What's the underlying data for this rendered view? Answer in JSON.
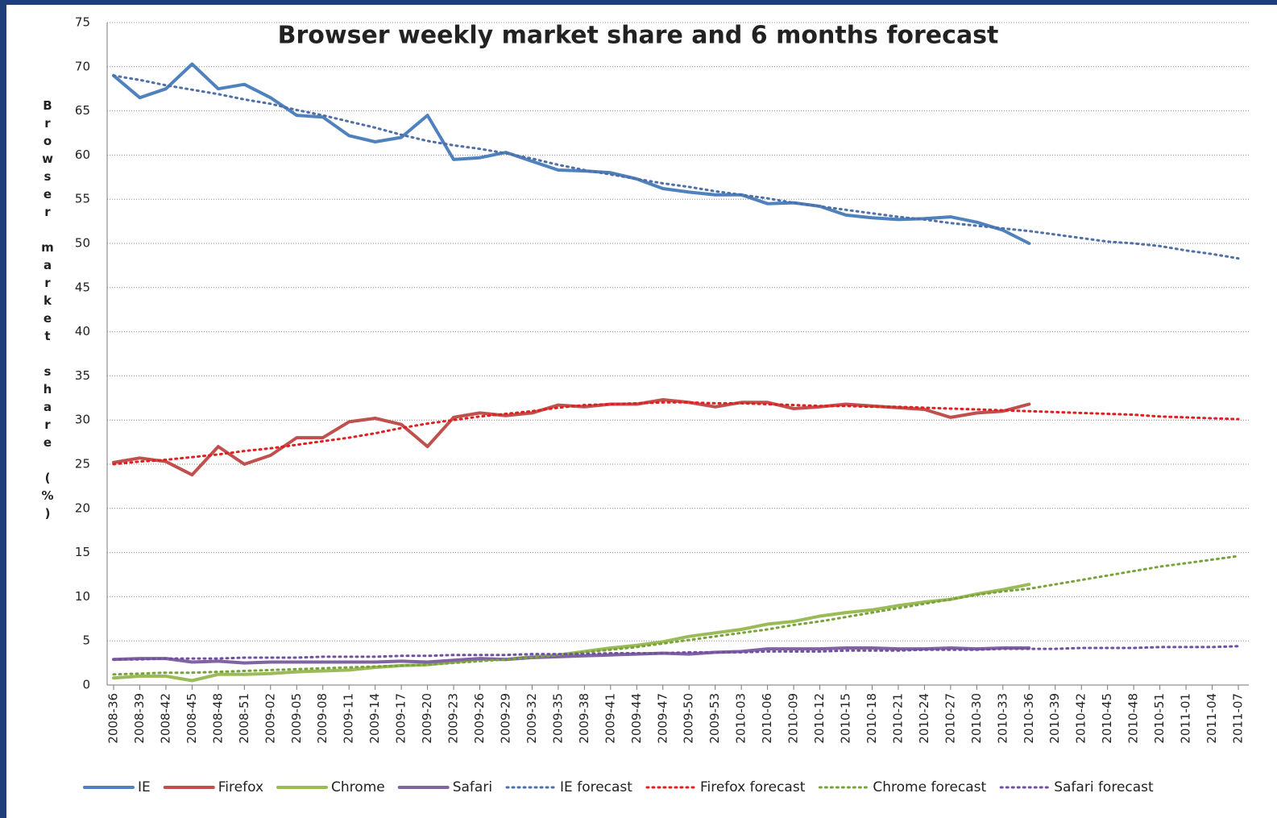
{
  "chart_data": {
    "type": "line",
    "title": "Browser weekly market share and 6 months forecast",
    "y_label": "Browser market share (%)",
    "categories": [
      "2008-36",
      "2008-39",
      "2008-42",
      "2008-45",
      "2008-48",
      "2008-51",
      "2009-02",
      "2009-05",
      "2009-08",
      "2009-11",
      "2009-14",
      "2009-17",
      "2009-20",
      "2009-23",
      "2009-26",
      "2009-29",
      "2009-32",
      "2009-35",
      "2009-38",
      "2009-41",
      "2009-44",
      "2009-47",
      "2009-50",
      "2009-53",
      "2010-03",
      "2010-06",
      "2010-09",
      "2010-12",
      "2010-15",
      "2010-18",
      "2010-21",
      "2010-24",
      "2010-27",
      "2010-30",
      "2010-33",
      "2010-36",
      "2010-39",
      "2010-42",
      "2010-45",
      "2010-48",
      "2010-51",
      "2011-01",
      "2011-04",
      "2011-07"
    ],
    "ylim": [
      0,
      75
    ],
    "yticks": [
      0,
      5,
      10,
      15,
      20,
      25,
      30,
      35,
      40,
      45,
      50,
      55,
      60,
      65,
      70,
      75
    ],
    "grid": true,
    "legend": "bottom",
    "series": [
      {
        "name": "IE",
        "color": "#4f81bd",
        "style": "solid",
        "values": [
          69,
          66.5,
          67.5,
          70.3,
          67.5,
          68,
          66.5,
          64.5,
          64.3,
          62.2,
          61.5,
          62,
          64.5,
          59.5,
          59.7,
          60.3,
          59.3,
          58.3,
          58.2,
          58,
          57.3,
          56.2,
          55.8,
          55.5,
          55.5,
          54.5,
          54.6,
          54.2,
          53.2,
          52.9,
          52.7,
          52.8,
          53,
          52.4,
          51.5,
          50,
          null,
          null,
          null,
          null,
          null,
          null,
          null,
          null
        ]
      },
      {
        "name": "Firefox",
        "color": "#c0504d",
        "style": "solid",
        "values": [
          25.2,
          25.7,
          25.3,
          23.8,
          27,
          25,
          26,
          28,
          28,
          29.8,
          30.2,
          29.5,
          27,
          30.3,
          30.8,
          30.5,
          30.8,
          31.7,
          31.5,
          31.8,
          31.8,
          32.3,
          32,
          31.5,
          32,
          32,
          31.3,
          31.5,
          31.8,
          31.6,
          31.4,
          31.2,
          30.3,
          30.8,
          31,
          31.8,
          null,
          null,
          null,
          null,
          null,
          null,
          null,
          null
        ]
      },
      {
        "name": "Chrome",
        "color": "#9bbb59",
        "style": "solid",
        "values": [
          0.8,
          1,
          1,
          0.5,
          1.2,
          1.2,
          1.3,
          1.5,
          1.6,
          1.7,
          2,
          2.2,
          2.3,
          2.6,
          2.9,
          2.9,
          3.2,
          3.4,
          3.8,
          4.2,
          4.5,
          4.9,
          5.5,
          5.9,
          6.3,
          6.9,
          7.2,
          7.8,
          8.2,
          8.5,
          9,
          9.4,
          9.7,
          10.3,
          10.8,
          11.4,
          null,
          null,
          null,
          null,
          null,
          null,
          null,
          null
        ]
      },
      {
        "name": "Safari",
        "color": "#8064a2",
        "style": "solid",
        "values": [
          2.9,
          3,
          3,
          2.6,
          2.7,
          2.5,
          2.6,
          2.6,
          2.6,
          2.6,
          2.6,
          2.7,
          2.6,
          2.8,
          3,
          2.9,
          3.1,
          3.2,
          3.3,
          3.4,
          3.5,
          3.6,
          3.5,
          3.7,
          3.8,
          4.1,
          4.1,
          4.1,
          4.2,
          4.2,
          4.1,
          4.1,
          4.2,
          4.1,
          4.2,
          4.2,
          null,
          null,
          null,
          null,
          null,
          null,
          null,
          null
        ]
      },
      {
        "name": "IE forecast",
        "color": "#4f6fa8",
        "style": "dotted",
        "values": [
          69,
          68.5,
          67.9,
          67.4,
          66.9,
          66.3,
          65.8,
          65.1,
          64.5,
          63.8,
          63.1,
          62.3,
          61.6,
          61.1,
          60.7,
          60.2,
          59.6,
          58.9,
          58.3,
          57.8,
          57.3,
          56.8,
          56.4,
          55.9,
          55.5,
          55.1,
          54.6,
          54.2,
          53.8,
          53.4,
          53,
          52.7,
          52.3,
          52,
          51.7,
          51.4,
          51,
          50.6,
          50.2,
          50,
          49.7,
          49.2,
          48.8,
          48.3
        ]
      },
      {
        "name": "Firefox forecast",
        "color": "#e02020",
        "style": "dotted",
        "values": [
          25,
          25.3,
          25.5,
          25.8,
          26.1,
          26.5,
          26.8,
          27.2,
          27.6,
          28,
          28.5,
          29.1,
          29.6,
          30,
          30.4,
          30.7,
          31,
          31.4,
          31.7,
          31.8,
          31.9,
          32,
          32,
          31.9,
          31.9,
          31.8,
          31.7,
          31.6,
          31.6,
          31.5,
          31.5,
          31.4,
          31.3,
          31.2,
          31.1,
          31,
          30.9,
          30.8,
          30.7,
          30.6,
          30.4,
          30.3,
          30.2,
          30.1
        ]
      },
      {
        "name": "Chrome forecast",
        "color": "#77a33a",
        "style": "dotted",
        "values": [
          1.2,
          1.3,
          1.4,
          1.4,
          1.5,
          1.6,
          1.7,
          1.8,
          1.9,
          2,
          2.1,
          2.2,
          2.3,
          2.5,
          2.7,
          2.9,
          3.1,
          3.4,
          3.7,
          4,
          4.3,
          4.7,
          5.1,
          5.5,
          5.9,
          6.3,
          6.8,
          7.2,
          7.7,
          8.2,
          8.7,
          9.2,
          9.7,
          10.2,
          10.6,
          10.9,
          11.4,
          11.9,
          12.4,
          12.9,
          13.4,
          13.8,
          14.2,
          14.6
        ]
      },
      {
        "name": "Safari forecast",
        "color": "#7050a0",
        "style": "dotted",
        "values": [
          2.9,
          2.9,
          3,
          3,
          3,
          3.1,
          3.1,
          3.1,
          3.2,
          3.2,
          3.2,
          3.3,
          3.3,
          3.4,
          3.4,
          3.4,
          3.5,
          3.5,
          3.5,
          3.6,
          3.6,
          3.6,
          3.7,
          3.7,
          3.7,
          3.8,
          3.8,
          3.8,
          3.9,
          3.9,
          3.9,
          4,
          4,
          4,
          4.1,
          4.1,
          4.1,
          4.2,
          4.2,
          4.2,
          4.3,
          4.3,
          4.3,
          4.4
        ]
      }
    ]
  }
}
